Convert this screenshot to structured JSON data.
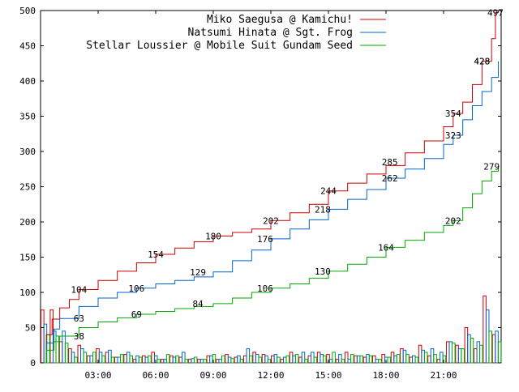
{
  "chart_data": {
    "type": "line",
    "title": "",
    "xlabel": "",
    "ylabel": "",
    "ylim": [
      0,
      500
    ],
    "xlim_hours": [
      0,
      24
    ],
    "grid": false,
    "legend_placement": "top-right",
    "x_ticks": [
      {
        "hour": 3,
        "label": "03:00"
      },
      {
        "hour": 6,
        "label": "06:00"
      },
      {
        "hour": 9,
        "label": "09:00"
      },
      {
        "hour": 12,
        "label": "12:00"
      },
      {
        "hour": 15,
        "label": "15:00"
      },
      {
        "hour": 18,
        "label": "18:00"
      },
      {
        "hour": 21,
        "label": "21:00"
      }
    ],
    "y_ticks": [
      0,
      50,
      100,
      150,
      200,
      250,
      300,
      350,
      400,
      450,
      500
    ],
    "series": [
      {
        "name": "Miko Saegusa @ Kamichu!",
        "color": "#cc0000",
        "points": [
          [
            0,
            0
          ],
          [
            0.3,
            40
          ],
          [
            0.6,
            62
          ],
          [
            1,
            78
          ],
          [
            1.5,
            90
          ],
          [
            2,
            104
          ],
          [
            3,
            117
          ],
          [
            4,
            130
          ],
          [
            5,
            142
          ],
          [
            6,
            154
          ],
          [
            7,
            163
          ],
          [
            8,
            172
          ],
          [
            9,
            180
          ],
          [
            10,
            185
          ],
          [
            11,
            190
          ],
          [
            12,
            202
          ],
          [
            13,
            213
          ],
          [
            14,
            225
          ],
          [
            15,
            244
          ],
          [
            16,
            255
          ],
          [
            17,
            268
          ],
          [
            18,
            280
          ],
          [
            19,
            298
          ],
          [
            20,
            315
          ],
          [
            21,
            335
          ],
          [
            21.5,
            354
          ],
          [
            22,
            370
          ],
          [
            22.5,
            395
          ],
          [
            23,
            428
          ],
          [
            23.5,
            460
          ],
          [
            23.7,
            497
          ],
          [
            23.85,
            500
          ]
        ],
        "labels": [
          [
            2,
            104
          ],
          [
            6,
            154
          ],
          [
            9,
            180
          ],
          [
            12,
            202
          ],
          [
            15,
            244
          ],
          [
            18.2,
            285
          ],
          [
            21.5,
            354
          ],
          [
            23,
            428
          ],
          [
            23.7,
            497
          ]
        ],
        "bars": [
          75,
          75,
          30,
          20,
          25,
          10,
          20,
          15,
          8,
          12,
          5,
          10,
          15,
          5,
          10,
          8,
          5,
          5,
          10,
          5,
          12,
          8,
          10,
          15,
          12,
          10,
          5,
          15,
          8,
          10,
          15,
          12,
          5,
          15,
          10,
          8,
          10,
          12,
          15,
          20,
          8,
          25,
          10,
          5,
          30,
          25,
          50,
          20,
          95,
          40
        ]
      },
      {
        "name": "Natsumi Hinata @ Sgt. Frog",
        "color": "#0066cc",
        "points": [
          [
            0,
            0
          ],
          [
            0.3,
            28
          ],
          [
            0.7,
            48
          ],
          [
            1,
            63
          ],
          [
            2,
            80
          ],
          [
            3,
            92
          ],
          [
            4,
            100
          ],
          [
            5,
            106
          ],
          [
            6,
            112
          ],
          [
            7,
            117
          ],
          [
            8,
            122
          ],
          [
            9,
            129
          ],
          [
            10,
            145
          ],
          [
            11,
            160
          ],
          [
            12,
            176
          ],
          [
            13,
            190
          ],
          [
            14,
            203
          ],
          [
            15,
            218
          ],
          [
            16,
            232
          ],
          [
            17,
            246
          ],
          [
            18,
            262
          ],
          [
            19,
            275
          ],
          [
            20,
            290
          ],
          [
            21,
            310
          ],
          [
            21.5,
            323
          ],
          [
            22,
            345
          ],
          [
            22.5,
            365
          ],
          [
            23,
            385
          ],
          [
            23.5,
            405
          ],
          [
            23.85,
            428
          ]
        ],
        "labels": [
          [
            2,
            63
          ],
          [
            5,
            106
          ],
          [
            8.2,
            129
          ],
          [
            11.7,
            176
          ],
          [
            14.7,
            218
          ],
          [
            18.2,
            262
          ],
          [
            21.5,
            323
          ],
          [
            23,
            428
          ]
        ],
        "bars": [
          55,
          45,
          45,
          15,
          20,
          10,
          15,
          18,
          8,
          15,
          10,
          8,
          10,
          5,
          8,
          15,
          6,
          5,
          10,
          5,
          8,
          10,
          20,
          12,
          10,
          12,
          8,
          10,
          15,
          15,
          12,
          5,
          12,
          5,
          10,
          12,
          5,
          8,
          10,
          18,
          10,
          18,
          20,
          15,
          30,
          20,
          40,
          30,
          75,
          45
        ]
      },
      {
        "name": "Stellar Loussier @ Mobile Suit Gundam Seed",
        "color": "#00aa00",
        "points": [
          [
            0,
            0
          ],
          [
            0.3,
            18
          ],
          [
            0.7,
            30
          ],
          [
            1,
            38
          ],
          [
            2,
            50
          ],
          [
            3,
            58
          ],
          [
            4,
            64
          ],
          [
            5,
            69
          ],
          [
            6,
            73
          ],
          [
            7,
            77
          ],
          [
            8,
            80
          ],
          [
            9,
            84
          ],
          [
            10,
            92
          ],
          [
            11,
            100
          ],
          [
            12,
            106
          ],
          [
            13,
            112
          ],
          [
            14,
            120
          ],
          [
            15,
            130
          ],
          [
            16,
            140
          ],
          [
            17,
            150
          ],
          [
            18,
            164
          ],
          [
            19,
            174
          ],
          [
            20,
            185
          ],
          [
            21,
            195
          ],
          [
            21.5,
            202
          ],
          [
            22,
            220
          ],
          [
            22.5,
            240
          ],
          [
            23,
            258
          ],
          [
            23.5,
            272
          ],
          [
            23.85,
            279
          ]
        ],
        "labels": [
          [
            2,
            38
          ],
          [
            5,
            69
          ],
          [
            8.2,
            84
          ],
          [
            11.7,
            106
          ],
          [
            14.7,
            130
          ],
          [
            18,
            164
          ],
          [
            21.5,
            202
          ],
          [
            23.5,
            279
          ]
        ],
        "bars": [
          40,
          38,
          28,
          8,
          15,
          15,
          10,
          8,
          12,
          10,
          8,
          10,
          5,
          12,
          10,
          5,
          8,
          5,
          12,
          10,
          6,
          5,
          10,
          8,
          5,
          8,
          10,
          12,
          5,
          8,
          10,
          15,
          5,
          12,
          10,
          10,
          5,
          8,
          12,
          12,
          8,
          15,
          12,
          10,
          28,
          20,
          35,
          25,
          45,
          30
        ]
      }
    ]
  }
}
